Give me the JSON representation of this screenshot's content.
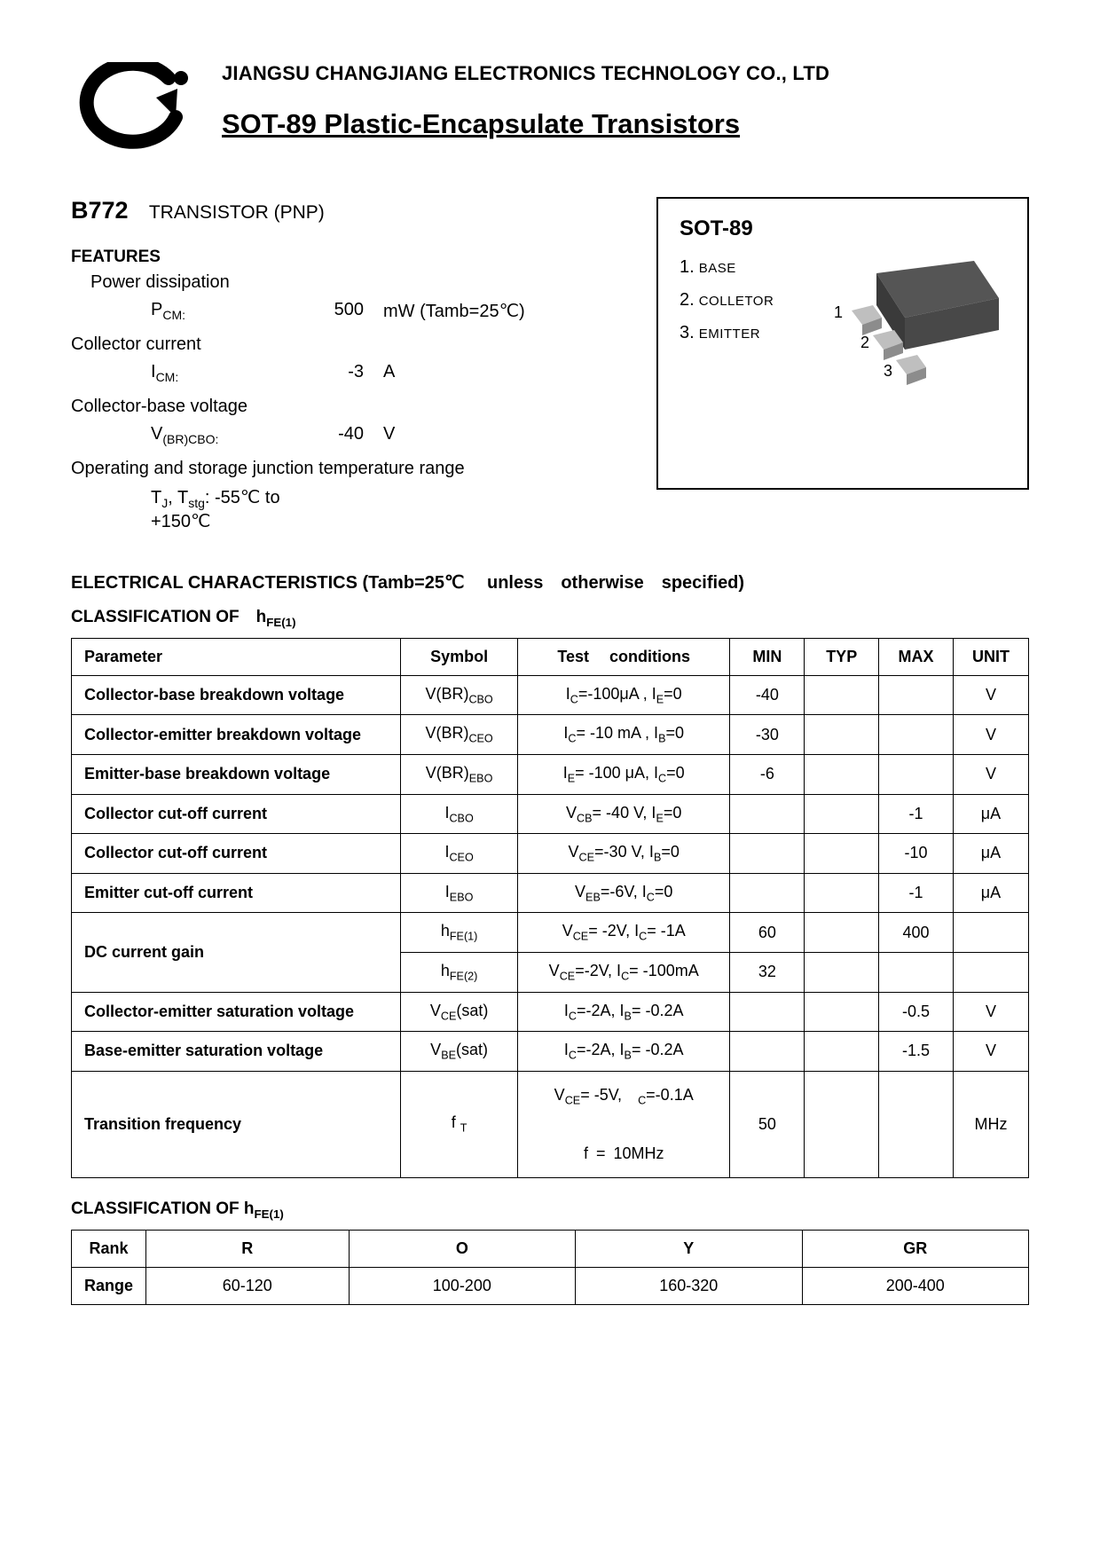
{
  "header": {
    "company": "JIANGSU CHANGJIANG ELECTRONICS TECHNOLOGY CO., LTD",
    "doc_title": "SOT-89 Plastic-Encapsulate Transistors"
  },
  "part": {
    "number": "B772",
    "desc": "TRANSISTOR (PNP)"
  },
  "features": {
    "title": "FEATURES",
    "items": [
      {
        "label": "Power dissipation",
        "sym_html": "P<sub>CM:</sub>",
        "val": "500",
        "unit": "mW (Tamb=25℃)"
      },
      {
        "label": "Collector current",
        "sym_html": "I<sub>CM:</sub>",
        "val": "-3",
        "unit": "A"
      },
      {
        "label": "Collector-base voltage",
        "sym_html": "V<sub>(BR)CBO:</sub>",
        "val": "-40",
        "unit": "V"
      },
      {
        "label": "Operating and storage junction temperature range",
        "sym_html": "T<sub>J</sub>, T<sub>stg</sub>: -55℃ to +150℃",
        "val": "",
        "unit": ""
      }
    ]
  },
  "package_box": {
    "title": "SOT-89",
    "pins": [
      {
        "num": "1.",
        "name": "BASE"
      },
      {
        "num": "2.",
        "name": "COLLETOR"
      },
      {
        "num": "3.",
        "name": "EMITTER"
      }
    ],
    "chip_colors": {
      "body": "#555555",
      "body_dark": "#3a3a3a",
      "lead": "#bfbfbf",
      "lead_dark": "#8c8c8c"
    }
  },
  "elec": {
    "heading": "ELECTRICAL CHARACTERISTICS (Tamb=25℃  unless otherwise specified)",
    "class_heading_html": "CLASSIFICATION OF h<sub>FE(1)</sub>",
    "columns": [
      "Parameter",
      "Symbol",
      "Test  conditions",
      "MIN",
      "TYP",
      "MAX",
      "UNIT"
    ],
    "rows": [
      {
        "param": "Collector-base breakdown voltage",
        "sym_html": "V(BR)<sub>CBO</sub>",
        "cond_html": "I<sub>C</sub>=-100μA , I<sub>E</sub>=0",
        "min": "-40",
        "typ": "",
        "max": "",
        "unit": "V"
      },
      {
        "param": "Collector-emitter breakdown voltage",
        "sym_html": "V(BR)<sub>CEO</sub>",
        "cond_html": "I<sub>C</sub>= -10 mA , I<sub>B</sub>=0",
        "min": "-30",
        "typ": "",
        "max": "",
        "unit": "V"
      },
      {
        "param": "Emitter-base breakdown voltage",
        "sym_html": "V(BR)<sub>EBO</sub>",
        "cond_html": "I<sub>E</sub>= -100 μA, I<sub>C</sub>=0",
        "min": "-6",
        "typ": "",
        "max": "",
        "unit": "V"
      },
      {
        "param": "Collector cut-off current",
        "sym_html": "I<sub>CBO</sub>",
        "cond_html": "V<sub>CB</sub>= -40 V, I<sub>E</sub>=0",
        "min": "",
        "typ": "",
        "max": "-1",
        "unit": "μA"
      },
      {
        "param": "Collector cut-off current",
        "sym_html": "I<sub>CEO</sub>",
        "cond_html": "V<sub>CE</sub>=-30 V, I<sub>B</sub>=0",
        "min": "",
        "typ": "",
        "max": "-10",
        "unit": "μA"
      },
      {
        "param": "Emitter cut-off current",
        "sym_html": "I<sub>EBO</sub>",
        "cond_html": "V<sub>EB</sub>=-6V, I<sub>C</sub>=0",
        "min": "",
        "typ": "",
        "max": "-1",
        "unit": "μA"
      },
      {
        "param": "DC current gain",
        "rowspan": 2,
        "sym_html": "h<sub>FE(1)</sub>",
        "cond_html": "V<sub>CE</sub>= -2V, I<sub>C</sub>= -1A",
        "min": "60",
        "typ": "",
        "max": "400",
        "unit": ""
      },
      {
        "param": "",
        "sym_html": "h<sub>FE(2)</sub>",
        "cond_html": "V<sub>CE</sub>=-2V, I<sub>C</sub>= -100mA",
        "min": "32",
        "typ": "",
        "max": "",
        "unit": ""
      },
      {
        "param": "Collector-emitter saturation voltage",
        "sym_html": "V<sub>CE</sub>(sat)",
        "cond_html": "I<sub>C</sub>=-2A, I<sub>B</sub>= -0.2A",
        "min": "",
        "typ": "",
        "max": "-0.5",
        "unit": "V"
      },
      {
        "param": "Base-emitter saturation voltage",
        "sym_html": "V<sub>BE</sub>(sat)",
        "cond_html": "I<sub>C</sub>=-2A, I<sub>B</sub>= -0.2A",
        "min": "",
        "typ": "",
        "max": "-1.5",
        "unit": "V"
      },
      {
        "param": "Transition frequency",
        "sym_html": "f <sub>T</sub>",
        "cond_html": "V<sub>CE</sub>= -5V, <sub>C</sub>=-0.1A<br><br>f = 10MHz",
        "min": "50",
        "typ": "",
        "max": "",
        "unit": "MHz"
      }
    ]
  },
  "hfe_class": {
    "heading_html": "CLASSIFICATION OF h<sub>FE(1)</sub>",
    "rank_label": "Rank",
    "range_label": "Range",
    "ranks": [
      "R",
      "O",
      "Y",
      "GR"
    ],
    "ranges": [
      "60-120",
      "100-200",
      "160-320",
      "200-400"
    ]
  },
  "colors": {
    "text": "#000000",
    "background": "#ffffff",
    "border": "#000000"
  }
}
